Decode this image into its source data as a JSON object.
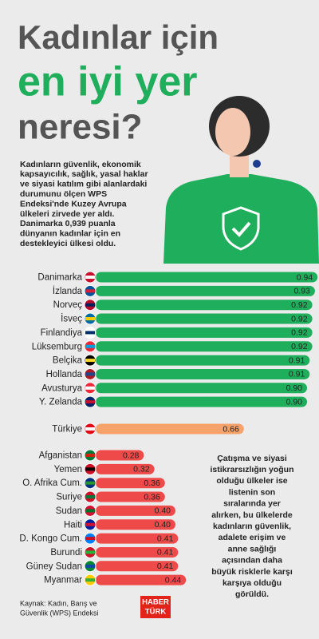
{
  "header": {
    "title_lines": [
      "Kadınlar için",
      "en iyi yer",
      "neresi?"
    ],
    "intro_lines": [
      "Kadınların güvenlik, ekonomik",
      "kapsayıcılık, sağlık, yasal haklar",
      "ve siyasi katılım gibi alanlardaki",
      "durumunu ölçen WPS",
      "Endeksi'nde Kuzey Avrupa",
      "ülkeleri zirvede yer aldı.",
      "Danimarka 0,939 puanla",
      "dünyanın kadınlar için en",
      "destekleyici ülkesi oldu."
    ]
  },
  "chart_data": {
    "type": "bar",
    "groups": [
      {
        "color": "#1fae5b",
        "categories": [
          "Danimarka",
          "İzlanda",
          "Norveç",
          "İsveç",
          "Finlandiya",
          "Lüksemburg",
          "Belçika",
          "Hollanda",
          "Avusturya",
          "Y. Zelanda"
        ],
        "values": [
          0.94,
          0.93,
          0.92,
          0.92,
          0.92,
          0.92,
          0.91,
          0.91,
          0.9,
          0.9
        ],
        "value_labels": [
          "0.94",
          "0.93",
          "0.92",
          "0.92",
          "0.92",
          "0.92",
          "0.91",
          "0.91",
          "0.90",
          "0.90"
        ]
      },
      {
        "color": "#f5a36b",
        "categories": [
          "Türkiye"
        ],
        "values": [
          0.66
        ],
        "value_labels": [
          "0.66"
        ]
      },
      {
        "color": "#ef4a4a",
        "categories": [
          "Afganistan",
          "Yemen",
          "O. Afrika Cum.",
          "Suriye",
          "Sudan",
          "Haiti",
          "D. Kongo Cum.",
          "Burundi",
          "Güney Sudan",
          "Myanmar"
        ],
        "values": [
          0.28,
          0.32,
          0.36,
          0.36,
          0.4,
          0.4,
          0.41,
          0.41,
          0.41,
          0.44
        ],
        "value_labels": [
          "0.28",
          "0.32",
          "0.36",
          "0.36",
          "0.40",
          "0.40",
          "0.41",
          "0.41",
          "0.41",
          "0.44"
        ]
      }
    ]
  },
  "note_lines": [
    "Çatışma ve siyasi",
    "istikrarsızlığın yoğun",
    "olduğu ülkeler ise",
    "listenin son",
    "sıralarında yer",
    "alırken, bu ülkelerde",
    "kadınların güvenlik,",
    "adalete erişim ve",
    "anne sağlığı",
    "açısından daha",
    "büyük risklerle karşı",
    "karşıya olduğu",
    "görüldü."
  ],
  "source_lines": [
    "Kaynak: Kadın, Barış ve",
    "Güvenlik (WPS) Endeksi"
  ],
  "logo": [
    "HABER",
    "TÜRK"
  ]
}
